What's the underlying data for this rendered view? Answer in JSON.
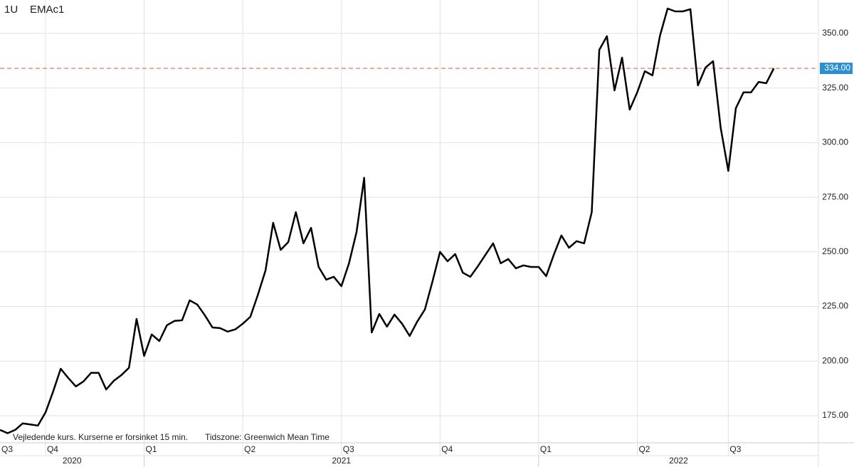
{
  "chart_data": {
    "type": "line",
    "interval": "1U",
    "title": "EMAc1",
    "note": "Vejledende kurs. Kurserne er forsinket 15 min.",
    "timezone": "Tidszone: Greenwich Mean Time",
    "categories": [
      "Q3",
      null,
      null,
      null,
      null,
      null,
      "Q4",
      null,
      null,
      null,
      null,
      null,
      null,
      null,
      null,
      null,
      null,
      null,
      null,
      "Q1",
      null,
      null,
      null,
      null,
      null,
      null,
      null,
      null,
      null,
      null,
      null,
      null,
      "Q2",
      null,
      null,
      null,
      null,
      null,
      null,
      null,
      null,
      null,
      null,
      null,
      null,
      "Q3",
      null,
      null,
      null,
      null,
      null,
      null,
      null,
      null,
      null,
      null,
      null,
      null,
      "Q4",
      null,
      null,
      null,
      null,
      null,
      null,
      null,
      null,
      null,
      null,
      null,
      null,
      "Q1",
      null,
      null,
      null,
      null,
      null,
      null,
      null,
      null,
      null,
      null,
      null,
      null,
      "Q2",
      null,
      null,
      null,
      null,
      null,
      null,
      null,
      null,
      null,
      null,
      null,
      "Q3",
      null,
      null,
      null,
      null,
      null,
      null
    ],
    "years": [
      "2020",
      "2021",
      "2022"
    ],
    "values": [
      168.5,
      167,
      168.5,
      171.5,
      171,
      170.5,
      176.5,
      186,
      196.5,
      192.3,
      188.4,
      190.7,
      194.6,
      194.6,
      187,
      191,
      193.6,
      196.9,
      219.3,
      202.4,
      212.2,
      209.2,
      216.4,
      218.4,
      218.7,
      227.8,
      225.9,
      221,
      215.4,
      215.1,
      213.5,
      214.5,
      217.1,
      220.3,
      230.4,
      241.5,
      263.3,
      250.9,
      254.5,
      268.2,
      253.9,
      261,
      243.1,
      237.3,
      238.6,
      234.3,
      244.8,
      259.1,
      283.9,
      213.1,
      221.6,
      215.8,
      221.3,
      217.1,
      211.5,
      218.1,
      223.6,
      236.3,
      250,
      245.7,
      249,
      240.5,
      238.6,
      243.5,
      248.7,
      253.9,
      244.8,
      246.7,
      242.5,
      243.8,
      243.1,
      243.1,
      238.9,
      248.7,
      257.5,
      251.9,
      254.9,
      253.9,
      268.2,
      342.5,
      348.7,
      323.9,
      338.9,
      315.1,
      323,
      332.7,
      330.8,
      349,
      361.4,
      360.1,
      360.1,
      361.1,
      326.2,
      334.4,
      337.3,
      306.7,
      287.1,
      315.8,
      323,
      323,
      327.8,
      327.2,
      334
    ],
    "color": "#000000",
    "ylim": [
      162.6,
      365.3
    ],
    "yticks": [
      {
        "value": 175,
        "label": "175.00"
      },
      {
        "value": 200,
        "label": "200.00"
      },
      {
        "value": 225,
        "label": "225.00"
      },
      {
        "value": 250,
        "label": "250.00"
      },
      {
        "value": 275,
        "label": "275.00"
      },
      {
        "value": 300,
        "label": "300.00"
      },
      {
        "value": 325,
        "label": "325.00"
      },
      {
        "value": 350,
        "label": "350.00"
      }
    ],
    "last_price": {
      "value": 334,
      "label": "334.00"
    },
    "last_price_color": "#d9534f",
    "last_price_label_color": "#2f8fce",
    "grid": true
  }
}
